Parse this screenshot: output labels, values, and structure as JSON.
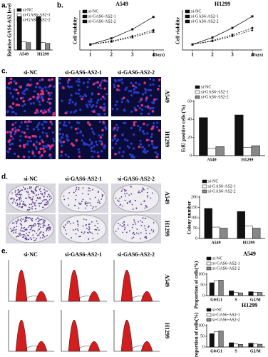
{
  "panel_labels": [
    "a.",
    "b.",
    "c.",
    "d.",
    "e."
  ],
  "images": {
    "c": {
      "columns": [
        "si-NC",
        "si-GAS6-AS2-1",
        "si-GAS6-AS2-2"
      ],
      "rows": [
        "A549",
        "H1299"
      ]
    },
    "d": {
      "columns": [
        "si-NC",
        "si-GAS6-AS2-1",
        "si-GAS6-AS2-2"
      ],
      "rows": [
        "A549",
        "H1299"
      ]
    },
    "e": {
      "columns": [
        "si-NC",
        "si-GAS6-AS2-1",
        "si-GAS6-AS2-2"
      ],
      "rows": [
        "A549",
        "H1299"
      ]
    }
  },
  "chart_data": [
    {
      "type": "bar",
      "y_label": "Relative GAS6-AS2 level",
      "categories": [
        "A549",
        "H1299"
      ],
      "ylim": [
        0,
        1.2
      ],
      "series": [
        {
          "name": "si-NC",
          "color": "#111111",
          "values": [
            1.0,
            1.0
          ]
        },
        {
          "name": "si-GAS6-AS2-1",
          "color": "#ffffff",
          "values": [
            0.25,
            0.22
          ]
        },
        {
          "name": "si-GAS6-AS2-2",
          "color": "#888888",
          "values": [
            0.22,
            0.2
          ]
        }
      ]
    },
    {
      "type": "line",
      "title": "A549",
      "y_label": "Cell viability",
      "x_label": "(Days)",
      "x": [
        1,
        2,
        3,
        4
      ],
      "xlim": [
        0.5,
        4.5
      ],
      "xticks": [
        1,
        2,
        3,
        4
      ],
      "ylim": [
        0,
        1.4
      ],
      "series": [
        {
          "name": "si-NC",
          "color": "#111111",
          "linestyle": "solid",
          "values": [
            0.2,
            0.42,
            0.75,
            1.2
          ]
        },
        {
          "name": "si-GAS6-AS2-1",
          "color": "#111111",
          "linestyle": "dashed",
          "values": [
            0.2,
            0.32,
            0.5,
            0.72
          ]
        },
        {
          "name": "si-GAS6-AS2-2",
          "color": "#111111",
          "linestyle": "dashed",
          "values": [
            0.2,
            0.3,
            0.46,
            0.66
          ]
        }
      ]
    },
    {
      "type": "line",
      "title": "H1299",
      "y_label": "Cell viability",
      "x_label": "(Days)",
      "x": [
        1,
        2,
        3,
        4
      ],
      "xlim": [
        0.5,
        4.5
      ],
      "xticks": [
        1,
        2,
        3,
        4
      ],
      "ylim": [
        0,
        1.4
      ],
      "series": [
        {
          "name": "si-NC",
          "color": "#111111",
          "linestyle": "solid",
          "values": [
            0.2,
            0.45,
            0.8,
            1.22
          ]
        },
        {
          "name": "si-GAS6-AS2-1",
          "color": "#111111",
          "linestyle": "dashed",
          "values": [
            0.2,
            0.34,
            0.55,
            0.8
          ]
        },
        {
          "name": "si-GAS6-AS2-2",
          "color": "#111111",
          "linestyle": "dashed",
          "values": [
            0.2,
            0.32,
            0.5,
            0.72
          ]
        }
      ]
    },
    {
      "type": "bar",
      "y_label": "EdU positive cells (%)",
      "categories": [
        "A549",
        "H1299"
      ],
      "ylim": [
        0,
        60
      ],
      "yticks": [
        0,
        20,
        40,
        60
      ],
      "series": [
        {
          "name": "si-NC",
          "color": "#111111",
          "values": [
            42,
            45
          ]
        },
        {
          "name": "si-GAS6-AS2-1",
          "color": "#ffffff",
          "values": [
            8,
            9
          ]
        },
        {
          "name": "si-GAS6-AS2-2",
          "color": "#888888",
          "values": [
            10,
            11
          ]
        }
      ]
    },
    {
      "type": "bar",
      "y_label": "Colony number",
      "categories": [
        "A549",
        "H1299"
      ],
      "ylim": [
        0,
        200
      ],
      "yticks": [
        0,
        50,
        100,
        150,
        200
      ],
      "series": [
        {
          "name": "si-NC",
          "color": "#111111",
          "values": [
            145,
            130
          ]
        },
        {
          "name": "si-GAS6-AS2-1",
          "color": "#ffffff",
          "values": [
            55,
            60
          ]
        },
        {
          "name": "si-GAS6-AS2-2",
          "color": "#888888",
          "values": [
            50,
            50
          ]
        }
      ]
    },
    {
      "type": "bar",
      "title": "A549",
      "y_label": "Proportion of cells(%)",
      "categories": [
        "G0/G1",
        "S",
        "G2/M"
      ],
      "ylim": [
        0,
        100
      ],
      "yticks": [
        0,
        50,
        100
      ],
      "series": [
        {
          "name": "si-NC",
          "color": "#111111",
          "values": [
            60,
            22,
            18
          ]
        },
        {
          "name": "si-GAS6-AS2-1",
          "color": "#ffffff",
          "values": [
            70,
            15,
            15
          ]
        },
        {
          "name": "si-GAS6-AS2-2",
          "color": "#888888",
          "values": [
            72,
            13,
            15
          ]
        }
      ]
    },
    {
      "type": "bar",
      "title": "H1299",
      "y_label": "Proportion of cells(%)",
      "categories": [
        "G0/G1",
        "S",
        "G2/M"
      ],
      "ylim": [
        0,
        100
      ],
      "yticks": [
        0,
        50,
        100
      ],
      "series": [
        {
          "name": "si-NC",
          "color": "#111111",
          "values": [
            62,
            20,
            18
          ]
        },
        {
          "name": "si-GAS6-AS2-1",
          "color": "#ffffff",
          "values": [
            72,
            14,
            14
          ]
        },
        {
          "name": "si-GAS6-AS2-2",
          "color": "#888888",
          "values": [
            75,
            12,
            13
          ]
        }
      ]
    }
  ]
}
